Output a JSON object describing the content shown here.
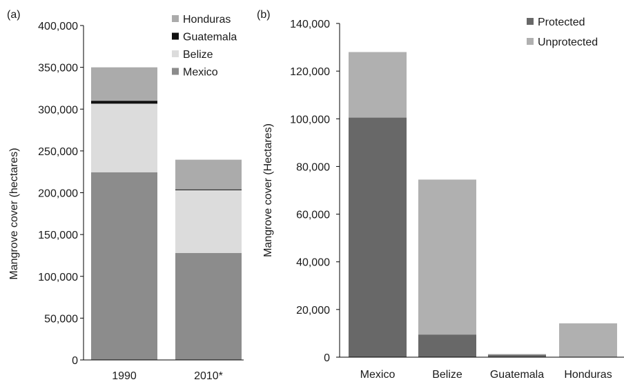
{
  "chart_data": [
    {
      "type": "bar",
      "stacked": true,
      "panel_label": "(a)",
      "title": "",
      "xlabel": "",
      "ylabel": "Mangrove cover (hectares)",
      "ylim": [
        0,
        400000
      ],
      "yticks": [
        "0",
        "50,000",
        "100,000",
        "150,000",
        "200,000",
        "250,000",
        "300,000",
        "350,000",
        "400,000"
      ],
      "ytick_values": [
        0,
        50000,
        100000,
        150000,
        200000,
        250000,
        300000,
        350000,
        400000
      ],
      "categories": [
        "1990",
        "2010*"
      ],
      "series": [
        {
          "name": "Mexico",
          "color": "#8c8c8c",
          "values": [
            224500,
            128000
          ]
        },
        {
          "name": "Belize",
          "color": "#dcdcdc",
          "values": [
            82000,
            75000
          ]
        },
        {
          "name": "Guatemala",
          "color": "#111111",
          "values": [
            3500,
            1000
          ]
        },
        {
          "name": "Honduras",
          "color": "#ababab",
          "values": [
            40000,
            35500
          ]
        }
      ],
      "legend_order": [
        "Honduras",
        "Guatemala",
        "Belize",
        "Mexico"
      ],
      "legend_position": "top-right",
      "grid": false
    },
    {
      "type": "bar",
      "stacked": true,
      "panel_label": "(b)",
      "title": "",
      "xlabel": "",
      "ylabel": "Mangrove cover (Hectares)",
      "ylim": [
        0,
        140000
      ],
      "yticks": [
        "0",
        "20,000",
        "40,000",
        "60,000",
        "80,000",
        "100,000",
        "120,000",
        "140,000"
      ],
      "ytick_values": [
        0,
        20000,
        40000,
        60000,
        80000,
        100000,
        120000,
        140000
      ],
      "categories": [
        "Mexico",
        "Belize",
        "Guatemala",
        "Honduras"
      ],
      "series": [
        {
          "name": "Protected",
          "color": "#686868",
          "values": [
            100500,
            9500,
            1000,
            0
          ]
        },
        {
          "name": "Unprotected",
          "color": "#b0b0b0",
          "values": [
            27500,
            65000,
            300,
            14200
          ]
        }
      ],
      "legend_order": [
        "Protected",
        "Unprotected"
      ],
      "legend_position": "top-right",
      "grid": false
    }
  ]
}
